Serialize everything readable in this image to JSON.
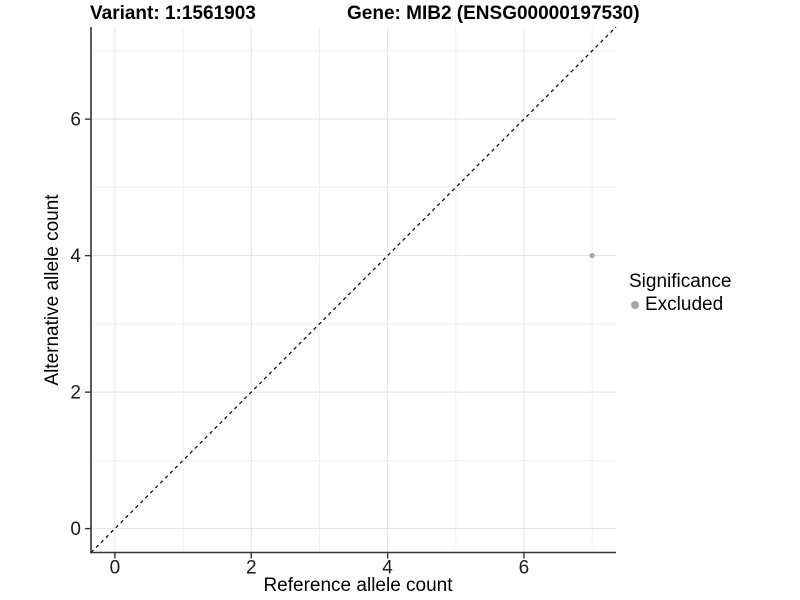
{
  "chart_data": {
    "type": "scatter",
    "titles": {
      "left": "Variant: 1:1561903",
      "right": "Gene: MIB2 (ENSG00000197530)"
    },
    "xlabel": "Reference allele count",
    "ylabel": "Alternative allele count",
    "xlim": [
      -0.35,
      7.35
    ],
    "ylim": [
      -0.35,
      7.35
    ],
    "major_ticks": [
      0,
      2,
      4,
      6
    ],
    "minor_gridlines": [
      1,
      3,
      5,
      7
    ],
    "grid": "on",
    "legend_title": "Significance",
    "legend_position": "right",
    "series": [
      {
        "name": "Excluded",
        "color": "#a6a6a6",
        "points": [
          {
            "x": 7,
            "y": 4
          }
        ]
      }
    ],
    "reference_line": {
      "kind": "identity",
      "equation": "y = x",
      "style": "dashed",
      "color": "#000000"
    }
  },
  "colors": {
    "background": "#ffffff",
    "axis_line": "#333333",
    "grid_major": "#e3e3e3",
    "grid_minor": "#efefef",
    "text": "#1a1a1a",
    "point": "#a6a6a6"
  }
}
